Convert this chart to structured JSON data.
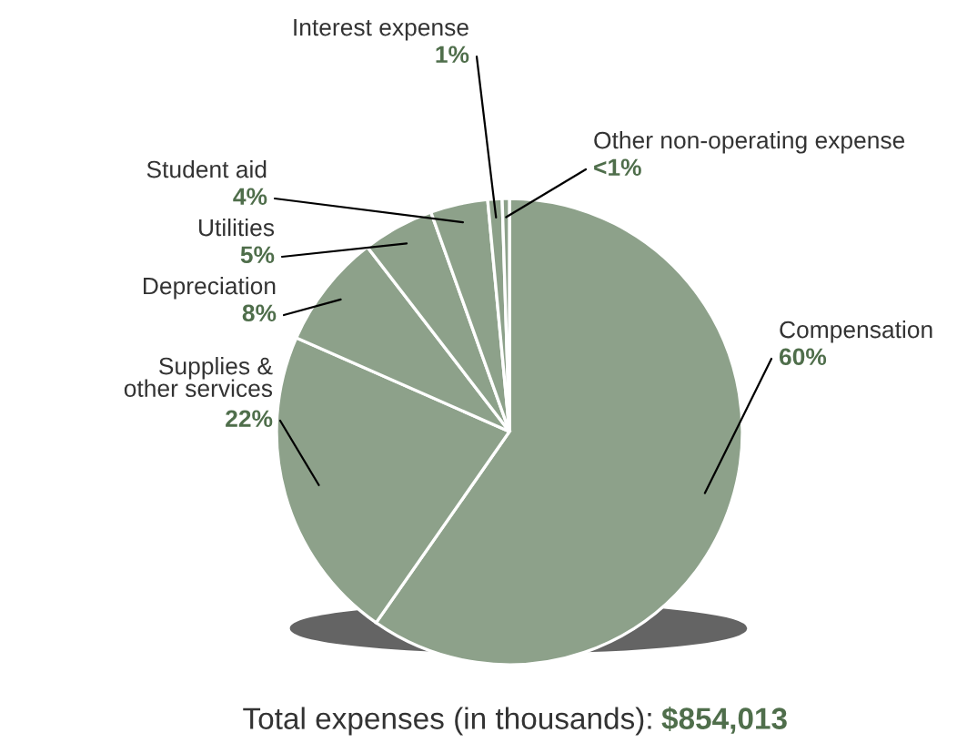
{
  "chart_data": {
    "type": "pie",
    "categories": [
      "Compensation",
      "Supplies &\nother services",
      "Depreciation",
      "Utilities",
      "Student aid",
      "Interest expense",
      "Other non-operating expense"
    ],
    "values": [
      60,
      22,
      8,
      5,
      4,
      1,
      0.5
    ],
    "value_labels": [
      "60%",
      "22%",
      "8%",
      "5%",
      "4%",
      "1%",
      "<1%"
    ],
    "colors": [
      "#8da18a",
      "#8da18a",
      "#8da18a",
      "#8da18a",
      "#8da18a",
      "#8da18a",
      "#8da18a"
    ],
    "annotations": [
      "Total expenses (in thousands):",
      "$854,013"
    ]
  }
}
